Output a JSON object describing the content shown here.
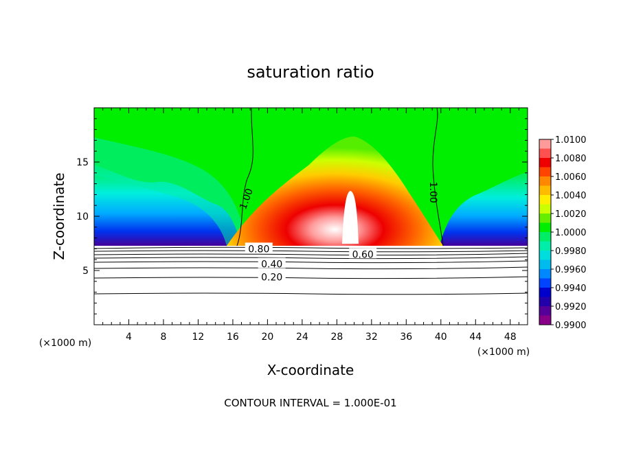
{
  "chart_data": {
    "type": "heatmap",
    "title": "saturation ratio",
    "xlabel": "X-coordinate",
    "ylabel": "Z-coordinate",
    "x_unit": "(×1000 m)",
    "y_unit": "(×1000 m)",
    "xlim": [
      0,
      50
    ],
    "ylim": [
      0,
      20
    ],
    "x_ticks": [
      4,
      8,
      12,
      16,
      20,
      24,
      28,
      32,
      36,
      40,
      44,
      48
    ],
    "y_ticks": [
      5,
      10,
      15
    ],
    "colorbar": {
      "min": 0.99,
      "max": 1.01,
      "labels": [
        "1.0100",
        "1.0080",
        "1.0060",
        "1.0040",
        "1.0020",
        "1.0000",
        "0.9980",
        "0.9960",
        "0.9940",
        "0.9920",
        "0.9900"
      ],
      "colors": [
        "#ff9a9a",
        "#ff5050",
        "#ee0000",
        "#ff4400",
        "#ff8800",
        "#ffbb00",
        "#ffee00",
        "#ccff00",
        "#66ee00",
        "#00ee00",
        "#00ee66",
        "#00eeaa",
        "#00dddd",
        "#00bbee",
        "#0088ff",
        "#0044ff",
        "#0000cc",
        "#2200aa",
        "#550099",
        "#880088"
      ]
    },
    "contours": [
      {
        "label": "0.20",
        "z": 4.4
      },
      {
        "label": "0.40",
        "z": 5.6
      },
      {
        "label": "0.60",
        "z": 6.5
      },
      {
        "label": "0.80",
        "z": 7.0
      },
      {
        "label": "1.00",
        "x_left": 17.5,
        "x_right": 39
      }
    ],
    "footer": "CONTOUR INTERVAL = 1.000E-01"
  }
}
